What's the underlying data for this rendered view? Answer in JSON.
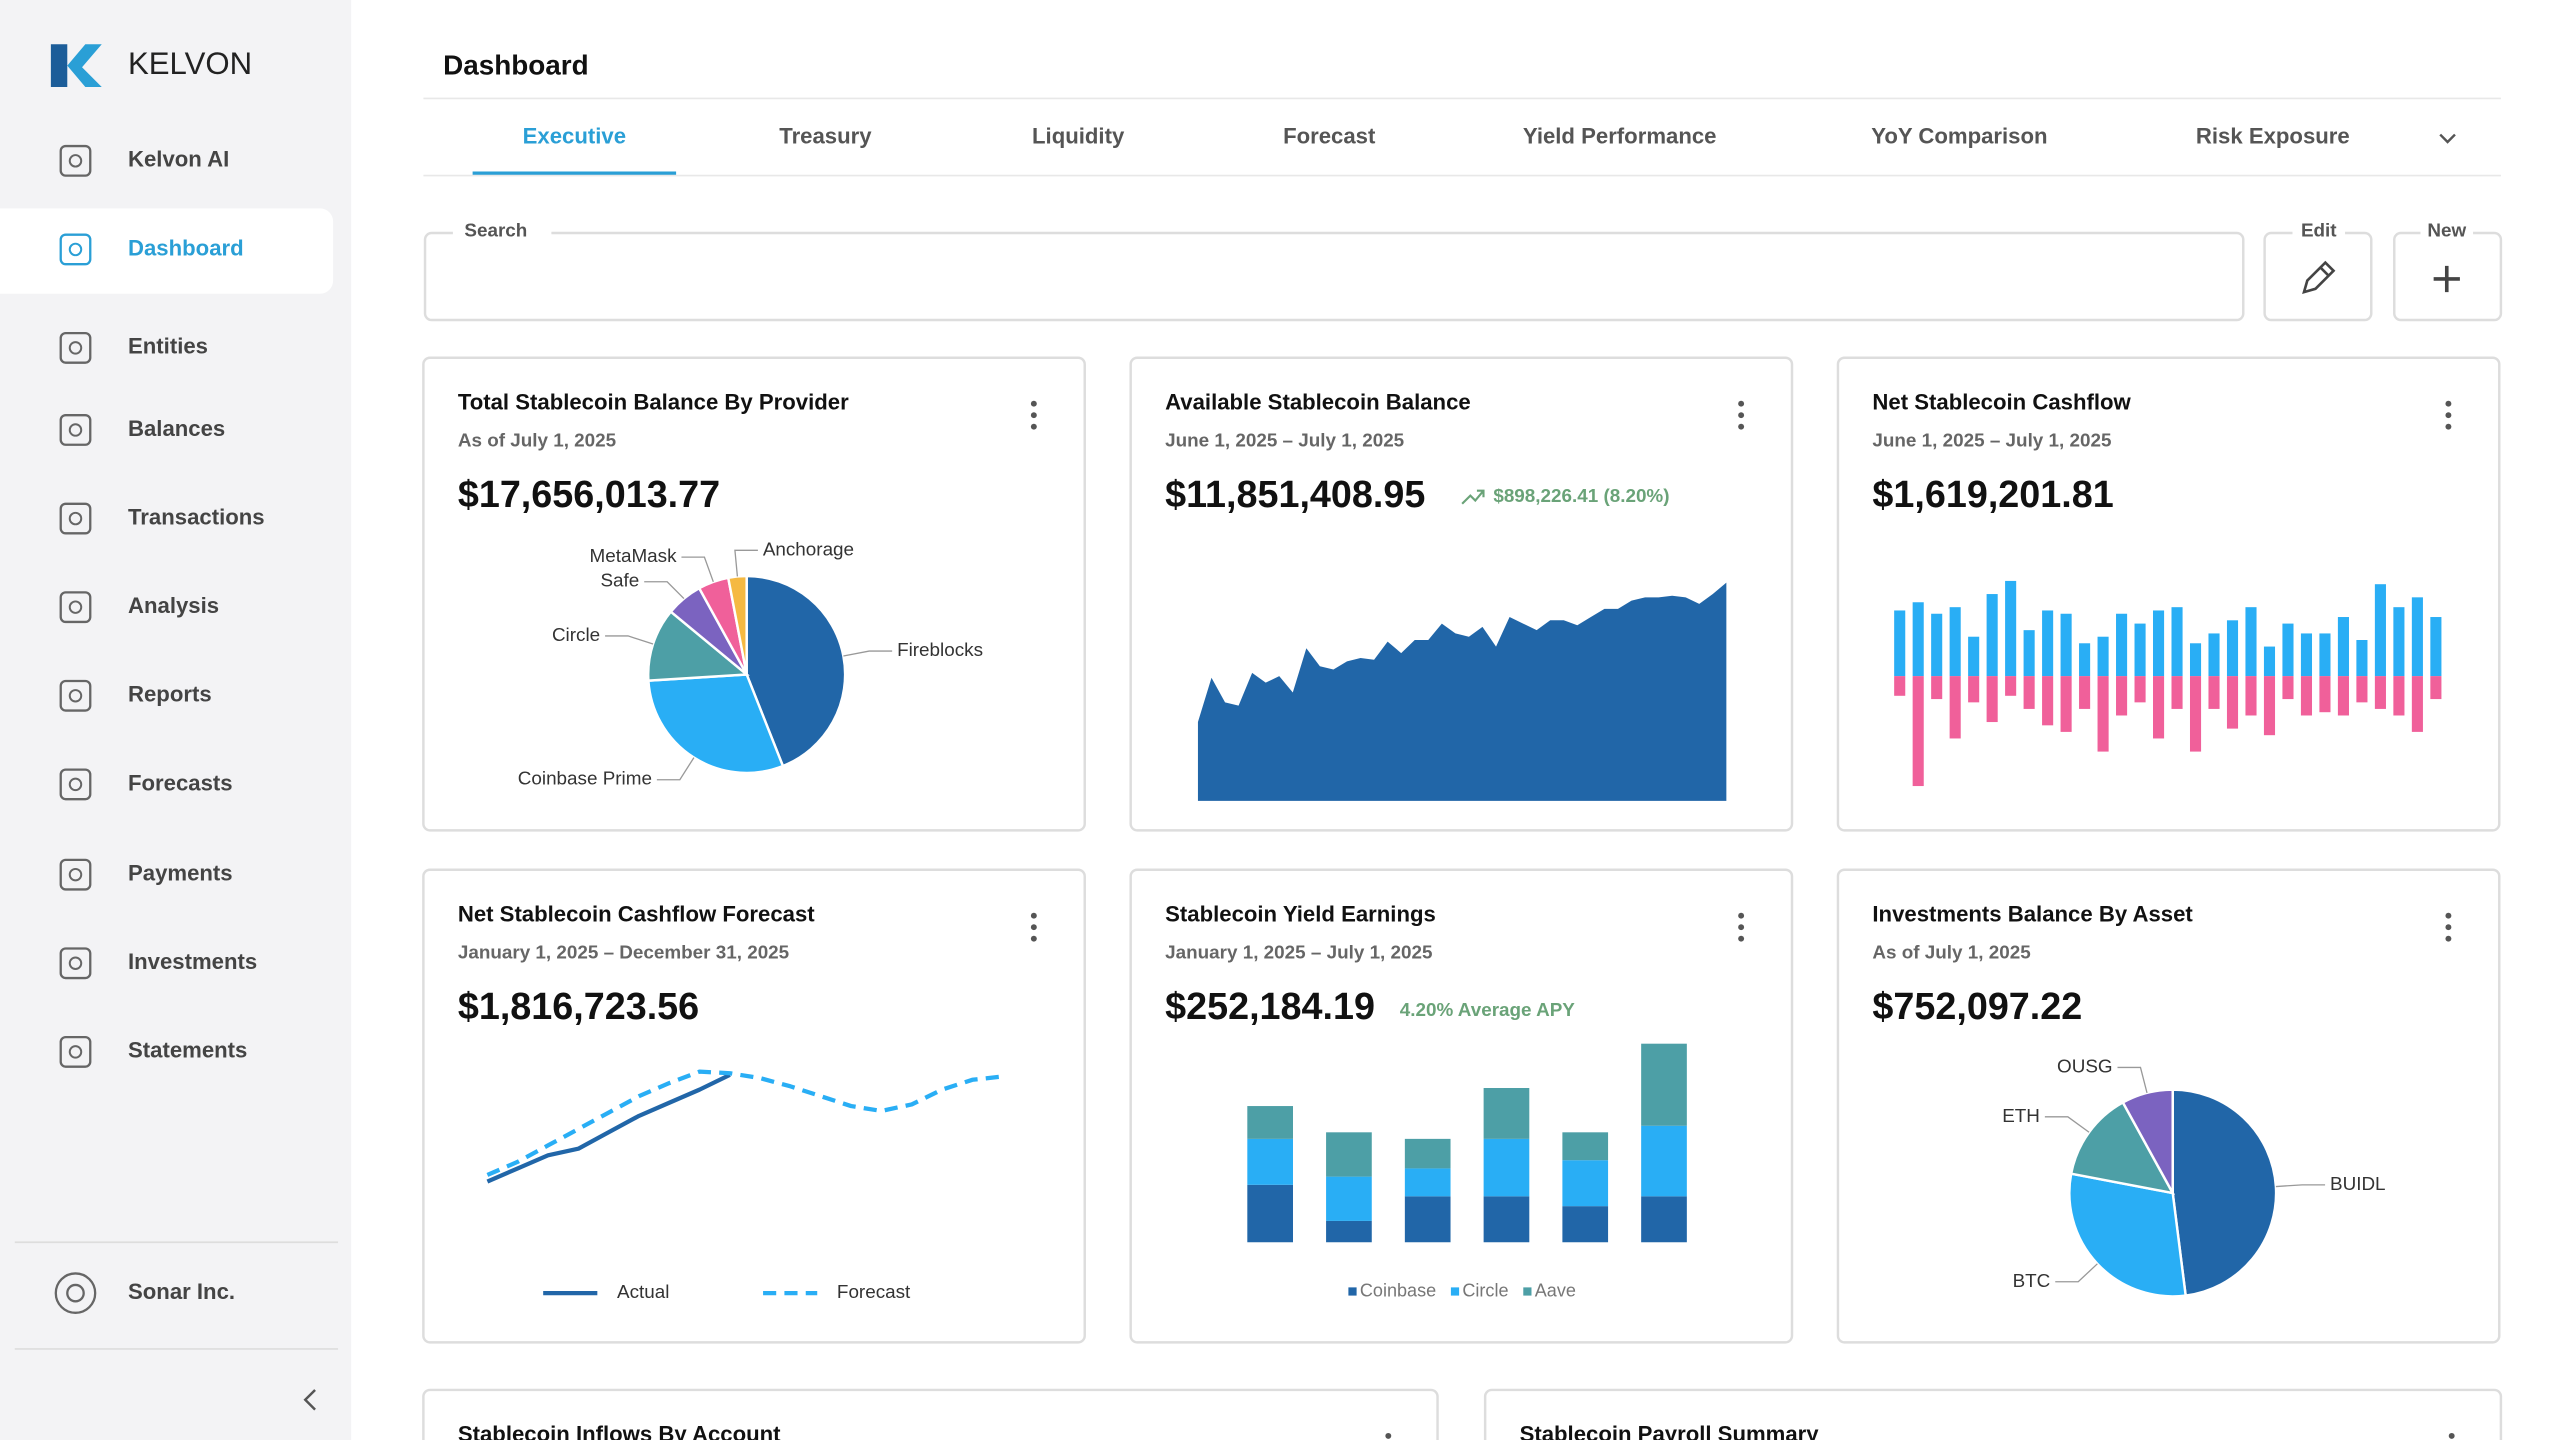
{
  "brand": "KELVON",
  "sidebar": {
    "items": [
      "Kelvon AI",
      "Dashboard",
      "Entities",
      "Balances",
      "Transactions",
      "Analysis",
      "Reports",
      "Forecasts",
      "Payments",
      "Investments",
      "Statements"
    ],
    "org": "Sonar Inc."
  },
  "header": {
    "title": "Dashboard"
  },
  "tabs": [
    "Executive",
    "Treasury",
    "Liquidity",
    "Forecast",
    "Yield Performance",
    "YoY Comparison",
    "Risk Exposure"
  ],
  "search": {
    "label": "Search",
    "edit": "Edit",
    "new": "New"
  },
  "chart_data": [
    {
      "type": "pie",
      "title": "Total Stablecoin Balance By Provider",
      "subtitle": "As of July 1, 2025",
      "total": "$17,656,013.77",
      "categories": [
        "Fireblocks",
        "Coinbase Prime",
        "Circle",
        "Safe",
        "MetaMask",
        "Anchorage"
      ],
      "values": [
        44,
        30,
        12,
        6,
        5,
        3
      ],
      "colors": [
        "#2166a8",
        "#29aef5",
        "#4d9fa6",
        "#7b63c0",
        "#f0609a",
        "#f5b942"
      ]
    },
    {
      "type": "area",
      "title": "Available Stablecoin Balance",
      "subtitle": "June 1, 2025 – July 1, 2025",
      "total": "$11,851,408.95",
      "badge": "$898,226.41 (8.20%)",
      "values": [
        48,
        75,
        60,
        58,
        78,
        72,
        76,
        66,
        93,
        82,
        80,
        85,
        87,
        86,
        97,
        90,
        98,
        98,
        108,
        102,
        100,
        106,
        94,
        112,
        108,
        104,
        110,
        110,
        107,
        112,
        117,
        117,
        122,
        124,
        124,
        125,
        124,
        120,
        126,
        133
      ],
      "color": "#2166a8",
      "ylim": [
        0,
        140
      ]
    },
    {
      "type": "bar",
      "stacked": true,
      "title": "Net Stablecoin Cashflow",
      "subtitle": "June 1, 2025 – July 1, 2025",
      "total": "$1,619,201.81",
      "categories": [
        null,
        null,
        null,
        null,
        null,
        null,
        null,
        null,
        null,
        null,
        null,
        null,
        null,
        null,
        null,
        null,
        null,
        null,
        null,
        null,
        null,
        null,
        null,
        null,
        null,
        null,
        null,
        null,
        null,
        null
      ],
      "series": [
        {
          "color": "#29aef5",
          "values": [
            40,
            45,
            38,
            42,
            24,
            50,
            58,
            28,
            40,
            38,
            20,
            24,
            38,
            32,
            40,
            42,
            20,
            26,
            34,
            42,
            18,
            32,
            26,
            26,
            36,
            22,
            56,
            42,
            48,
            36
          ]
        },
        {
          "color": "#f0609a",
          "values": [
            -12,
            -67,
            -14,
            -38,
            -16,
            -28,
            -12,
            -20,
            -30,
            -34,
            -20,
            -46,
            -24,
            -16,
            -38,
            -20,
            -46,
            -20,
            -32,
            -24,
            -36,
            -14,
            -24,
            -22,
            -24,
            -16,
            -20,
            -24,
            -34,
            -14
          ]
        }
      ],
      "ylim": [
        -70,
        60
      ]
    },
    {
      "type": "line",
      "title": "Net Stablecoin Cashflow Forecast",
      "subtitle": "January 1, 2025 – December 31, 2025",
      "total": "$1,816,723.56",
      "x": [
        0,
        1,
        2,
        3,
        4,
        5,
        6,
        7,
        8,
        9,
        10,
        11,
        12,
        13,
        14,
        15,
        16,
        17
      ],
      "series": [
        {
          "name": "Actual",
          "color": "#2166a8",
          "dash": false,
          "values": [
            40,
            48,
            56,
            60,
            70,
            80,
            88,
            96,
            105,
            null,
            null,
            null,
            null,
            null,
            null,
            null,
            null,
            null
          ]
        },
        {
          "name": "Forecast",
          "color": "#29aef5",
          "dash": true,
          "values": [
            44,
            52,
            62,
            72,
            82,
            92,
            100,
            107,
            106,
            103,
            98,
            92,
            86,
            83,
            87,
            96,
            102,
            104
          ]
        }
      ],
      "xlim": [
        0,
        17
      ],
      "ylim": [
        0,
        140
      ]
    },
    {
      "type": "bar",
      "stacked": true,
      "title": "Stablecoin Yield Earnings",
      "subtitle": "January 1, 2025 – July 1, 2025",
      "total": "$252,184.19",
      "badge": "4.20% Average APY",
      "categories": [
        null,
        null,
        null,
        null,
        null,
        null
      ],
      "series": [
        {
          "name": "Coinbase",
          "color": "#2166a8",
          "values": [
            35,
            13,
            28,
            28,
            22,
            28
          ]
        },
        {
          "name": "Circle",
          "color": "#29aef5",
          "values": [
            28,
            27,
            17,
            35,
            28,
            43
          ]
        },
        {
          "name": "Aave",
          "color": "#4d9fa6",
          "values": [
            20,
            27,
            18,
            31,
            17,
            50
          ]
        }
      ],
      "ylim": [
        0,
        125
      ]
    },
    {
      "type": "pie",
      "title": "Investments Balance By Asset",
      "subtitle": "As of July 1, 2025",
      "total": "$752,097.22",
      "categories": [
        "BUIDL",
        "BTC",
        "ETH",
        "OUSG"
      ],
      "values": [
        48,
        30,
        14,
        8
      ],
      "colors": [
        "#2166a8",
        "#29aef5",
        "#4d9fa6",
        "#7b63c0"
      ]
    }
  ],
  "more_cards": [
    "Stablecoin Inflows By Account",
    "Stablecoin Payroll Summary"
  ]
}
